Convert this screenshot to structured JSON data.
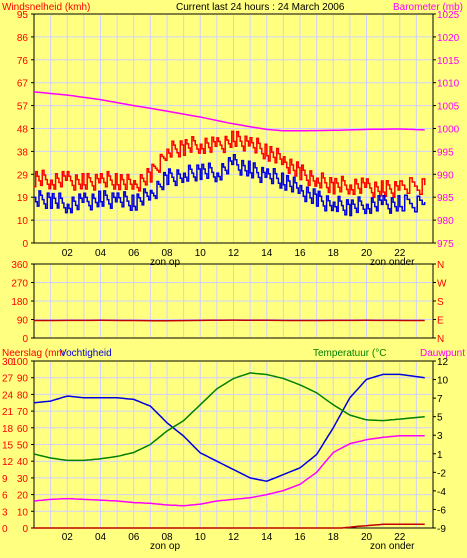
{
  "header": {
    "left": "Windsnelheid (kmh)",
    "center": "Current last 24 hours : 24 March 2006",
    "right": "Barometer (mb)"
  },
  "panel3_labels": {
    "left_a": "Neerslag (mm",
    "left_b": "Vochtigheid",
    "right_a": "Temperatuur (°C",
    "right_b": "Dauwpunt"
  },
  "sun": {
    "rise": "zon op",
    "set": "zon onder"
  },
  "colors": {
    "bg": "#ffff80",
    "frame": "#000000",
    "grid": "#d0d0ff",
    "red": "#ff0000",
    "blue": "#0000e0",
    "magenta": "#ff00ff",
    "green": "#008000",
    "darkred": "#c00000"
  },
  "chart_data": [
    {
      "type": "line",
      "name": "wind-and-barometer",
      "x_ticks": [
        "02",
        "04",
        "06",
        "08",
        "10",
        "12",
        "14",
        "16",
        "18",
        "20",
        "22"
      ],
      "y_left_ticks": [
        "95",
        "86",
        "76",
        "67",
        "57",
        "48",
        "38",
        "29",
        "19",
        "10",
        "0"
      ],
      "y_right_ticks": [
        "1025",
        "1020",
        "1015",
        "1010",
        "1005",
        "1000",
        "995",
        "990",
        "985",
        "980",
        "975"
      ],
      "ylim_left": [
        0,
        95
      ],
      "ylim_right": [
        975,
        1025
      ],
      "xlim_hours": [
        0,
        24
      ],
      "series": [
        {
          "axis": "left",
          "color": "red",
          "x": [
            0,
            1,
            2,
            3,
            4,
            5,
            6,
            7,
            8,
            9,
            10,
            11,
            12,
            13,
            14,
            15,
            16,
            17,
            18,
            19,
            20,
            21,
            22,
            23.5
          ],
          "values": [
            27,
            26,
            26,
            25,
            26,
            26,
            24,
            28,
            38,
            40,
            41,
            40,
            43,
            41,
            38,
            34,
            29,
            26,
            24,
            24,
            23,
            22,
            23,
            24
          ]
        },
        {
          "axis": "left",
          "color": "blue",
          "x": [
            0,
            1,
            2,
            3,
            4,
            5,
            6,
            7,
            8,
            9,
            10,
            11,
            12,
            13,
            14,
            15,
            16,
            17,
            18,
            19,
            20,
            21,
            22,
            23.5
          ],
          "values": [
            18,
            18,
            16,
            17,
            18,
            18,
            17,
            20,
            27,
            28,
            30,
            29,
            33,
            30,
            28,
            26,
            22,
            18,
            16,
            15,
            16,
            16,
            16,
            17
          ]
        },
        {
          "axis": "right",
          "color": "magenta",
          "x": [
            0,
            2,
            4,
            6,
            8,
            10,
            12,
            14,
            15,
            16,
            18,
            20,
            22,
            23.5
          ],
          "values": [
            1008,
            1007.3,
            1006.3,
            1005,
            1003.8,
            1002.5,
            1001,
            999.8,
            999.5,
            999.5,
            999.6,
            999.8,
            999.9,
            999.7
          ]
        }
      ]
    },
    {
      "type": "line",
      "name": "wind-direction",
      "x_ticks": [],
      "y_left_ticks": [
        "360",
        "270",
        "180",
        "90",
        "0"
      ],
      "y_right_ticks": [
        "N",
        "W",
        "S",
        "E",
        "N"
      ],
      "ylim_left": [
        0,
        360
      ],
      "xlim_hours": [
        0,
        24
      ],
      "series": [
        {
          "axis": "left",
          "color": "darkred",
          "x": [
            0,
            4,
            8,
            12,
            16,
            20,
            23.5
          ],
          "values": [
            85,
            86,
            84,
            87,
            85,
            86,
            85
          ]
        }
      ]
    },
    {
      "type": "line",
      "name": "humidity-rain-temperature",
      "x_ticks": [
        "02",
        "04",
        "06",
        "08",
        "10",
        "12",
        "14",
        "16",
        "18",
        "20",
        "22"
      ],
      "y_left_ticks": [
        "100",
        "90",
        "80",
        "70",
        "60",
        "50",
        "40",
        "30",
        "20",
        "10",
        "0"
      ],
      "y_left2_ticks": [
        "30",
        "27",
        "24",
        "21",
        "18",
        "15",
        "12",
        "9",
        "6",
        "3",
        "0"
      ],
      "y_right_ticks": [
        "12",
        "10",
        "7",
        "5",
        "3",
        "1",
        "-2",
        "-4",
        "-6",
        "-9"
      ],
      "ylim_left": [
        0,
        100
      ],
      "ylim_right": [
        -9,
        12
      ],
      "xlim_hours": [
        0,
        24
      ],
      "series": [
        {
          "axis": "left",
          "color": "blue",
          "x": [
            0,
            1,
            2,
            3,
            4,
            5,
            6,
            7,
            8,
            9,
            10,
            11,
            12,
            13,
            14,
            15,
            16,
            17,
            18,
            19,
            20,
            21,
            22,
            23.5
          ],
          "values": [
            75,
            76,
            79,
            78,
            78,
            78,
            77,
            73,
            63,
            55,
            45,
            40,
            35,
            30,
            28,
            32,
            36,
            44,
            60,
            78,
            89,
            92,
            92,
            90
          ]
        },
        {
          "axis": "right",
          "color": "green",
          "x": [
            0,
            1,
            2,
            3,
            4,
            5,
            6,
            7,
            8,
            9,
            10,
            11,
            12,
            13,
            14,
            15,
            16,
            17,
            18,
            19,
            20,
            21,
            22,
            23.5
          ],
          "values": [
            0.3,
            -0.2,
            -0.5,
            -0.5,
            -0.3,
            0,
            0.5,
            1.5,
            3.2,
            4.5,
            6.5,
            8.5,
            9.8,
            10.5,
            10.3,
            9.8,
            9.0,
            8.0,
            6.5,
            5.2,
            4.6,
            4.5,
            4.7,
            5.0
          ]
        },
        {
          "axis": "right",
          "color": "magenta",
          "x": [
            0,
            1,
            2,
            3,
            4,
            5,
            6,
            7,
            8,
            9,
            10,
            11,
            12,
            13,
            14,
            15,
            16,
            17,
            18,
            19,
            20,
            21,
            22,
            23.5
          ],
          "values": [
            -5.6,
            -5.4,
            -5.3,
            -5.4,
            -5.5,
            -5.6,
            -5.8,
            -5.9,
            -6.1,
            -6.2,
            -6.0,
            -5.6,
            -5.4,
            -5.2,
            -4.8,
            -4.3,
            -3.5,
            -2.0,
            0.5,
            1.6,
            2.1,
            2.4,
            2.6,
            2.6
          ]
        },
        {
          "axis": "left",
          "color": "darkred",
          "x": [
            0,
            18.5,
            19.5,
            20.5,
            21,
            23.5
          ],
          "values": [
            0,
            0,
            1,
            1.8,
            2.2,
            2.3
          ]
        }
      ]
    }
  ]
}
